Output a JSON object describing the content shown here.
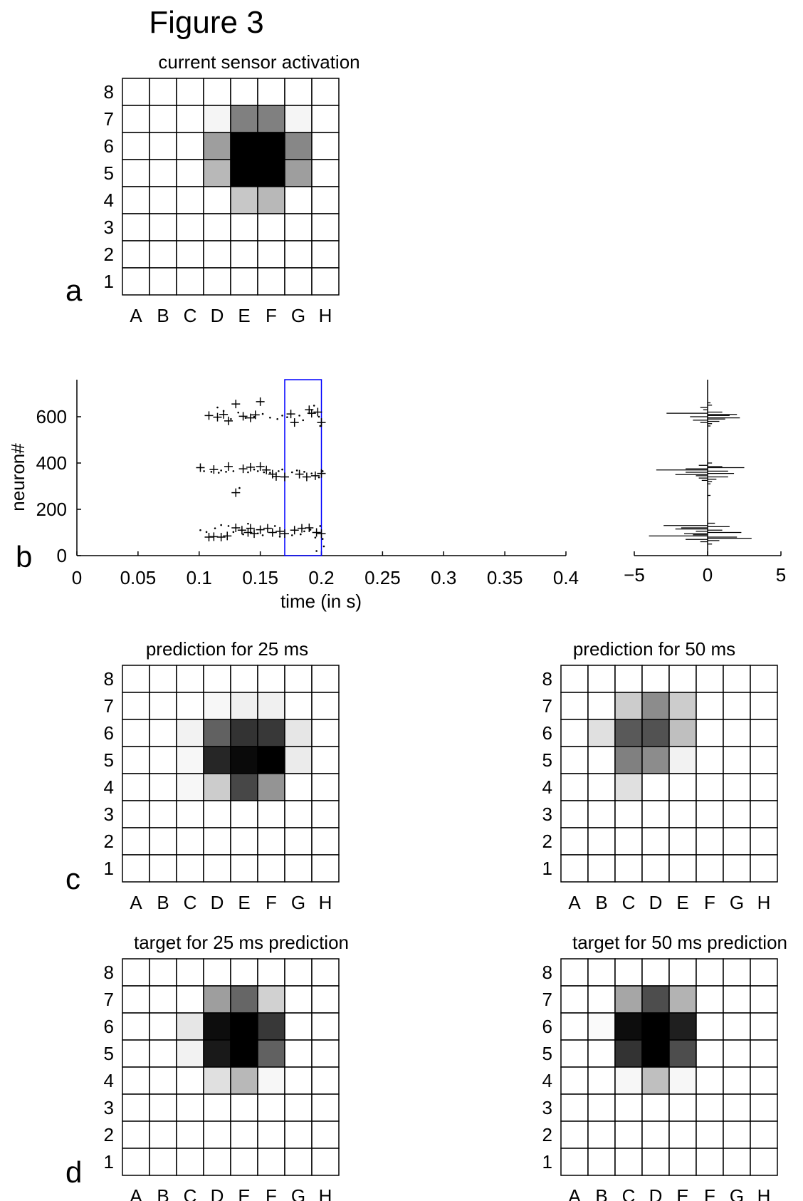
{
  "figure": {
    "title": "Figure 3"
  },
  "panel_labels": {
    "a": "a",
    "b": "b",
    "c": "c",
    "d": "d"
  },
  "grid_axes": {
    "columns": [
      "A",
      "B",
      "C",
      "D",
      "E",
      "F",
      "G",
      "H"
    ],
    "rows": [
      "8",
      "7",
      "6",
      "5",
      "4",
      "3",
      "2",
      "1"
    ]
  },
  "chart_data": [
    {
      "id": "sensor",
      "type": "heatmap",
      "title": "current sensor activation",
      "color_scale": "white-to-black (0 = white, 1 = black)",
      "rows": [
        "8",
        "7",
        "6",
        "5",
        "4",
        "3",
        "2",
        "1"
      ],
      "columns": [
        "A",
        "B",
        "C",
        "D",
        "E",
        "F",
        "G",
        "H"
      ],
      "values": [
        [
          0,
          0,
          0,
          0,
          0,
          0,
          0,
          0
        ],
        [
          0,
          0,
          0,
          0.04,
          0.5,
          0.5,
          0.04,
          0
        ],
        [
          0,
          0,
          0,
          0.38,
          1,
          1,
          0.47,
          0
        ],
        [
          0,
          0,
          0,
          0.28,
          1,
          1,
          0.38,
          0
        ],
        [
          0,
          0,
          0,
          0,
          0.22,
          0.28,
          0,
          0
        ],
        [
          0,
          0,
          0,
          0,
          0,
          0,
          0,
          0
        ],
        [
          0,
          0,
          0,
          0,
          0,
          0,
          0,
          0
        ],
        [
          0,
          0,
          0,
          0,
          0,
          0,
          0,
          0
        ]
      ]
    },
    {
      "id": "raster",
      "type": "scatter",
      "title": "",
      "xlabel": "time (in s)",
      "ylabel": "neuron#",
      "xlim": [
        0,
        0.4
      ],
      "ylim": [
        0,
        760
      ],
      "xticks": [
        "0",
        "0.05",
        "0.1",
        "0.15",
        "0.2",
        "0.25",
        "0.3",
        "0.35",
        "0.4"
      ],
      "yticks": [
        "0",
        "200",
        "400",
        "600"
      ],
      "highlight_window": {
        "x": [
          0.17,
          0.2
        ],
        "color": "#0000ff"
      },
      "series": [
        {
          "marker": "+",
          "points": [
            [
              0.108,
              605
            ],
            [
              0.115,
              598
            ],
            [
              0.12,
              610
            ],
            [
              0.124,
              582
            ],
            [
              0.13,
              655
            ],
            [
              0.136,
              602
            ],
            [
              0.142,
              595
            ],
            [
              0.146,
              608
            ],
            [
              0.15,
              665
            ],
            [
              0.175,
              612
            ],
            [
              0.178,
              575
            ],
            [
              0.19,
              630
            ],
            [
              0.192,
              615
            ],
            [
              0.197,
              620
            ],
            [
              0.2,
              575
            ],
            [
              0.101,
              380
            ],
            [
              0.112,
              372
            ],
            [
              0.124,
              385
            ],
            [
              0.13,
              272
            ],
            [
              0.136,
              375
            ],
            [
              0.142,
              382
            ],
            [
              0.15,
              385
            ],
            [
              0.155,
              370
            ],
            [
              0.16,
              352
            ],
            [
              0.163,
              342
            ],
            [
              0.17,
              340
            ],
            [
              0.182,
              352
            ],
            [
              0.188,
              340
            ],
            [
              0.195,
              345
            ],
            [
              0.2,
              355
            ],
            [
              0.108,
              80
            ],
            [
              0.112,
              82
            ],
            [
              0.118,
              80
            ],
            [
              0.123,
              85
            ],
            [
              0.13,
              120
            ],
            [
              0.135,
              110
            ],
            [
              0.14,
              100
            ],
            [
              0.142,
              118
            ],
            [
              0.145,
              95
            ],
            [
              0.15,
              112
            ],
            [
              0.156,
              118
            ],
            [
              0.16,
              100
            ],
            [
              0.166,
              105
            ],
            [
              0.17,
              95
            ],
            [
              0.178,
              110
            ],
            [
              0.184,
              118
            ],
            [
              0.19,
              120
            ],
            [
              0.196,
              100
            ],
            [
              0.2,
              95
            ]
          ]
        },
        {
          "marker": ".",
          "points": [
            [
              0.115,
              640
            ],
            [
              0.12,
              625
            ],
            [
              0.126,
              590
            ],
            [
              0.132,
              618
            ],
            [
              0.138,
              595
            ],
            [
              0.145,
              600
            ],
            [
              0.152,
              612
            ],
            [
              0.158,
              596
            ],
            [
              0.164,
              590
            ],
            [
              0.168,
              605
            ],
            [
              0.172,
              598
            ],
            [
              0.182,
              605
            ],
            [
              0.185,
              585
            ],
            [
              0.194,
              648
            ],
            [
              0.198,
              600
            ],
            [
              0.199,
              560
            ],
            [
              0.104,
              365
            ],
            [
              0.11,
              362
            ],
            [
              0.116,
              358
            ],
            [
              0.118,
              368
            ],
            [
              0.122,
              362
            ],
            [
              0.128,
              365
            ],
            [
              0.133,
              292
            ],
            [
              0.14,
              360
            ],
            [
              0.145,
              372
            ],
            [
              0.148,
              365
            ],
            [
              0.153,
              360
            ],
            [
              0.158,
              358
            ],
            [
              0.165,
              365
            ],
            [
              0.168,
              372
            ],
            [
              0.176,
              360
            ],
            [
              0.18,
              368
            ],
            [
              0.186,
              362
            ],
            [
              0.192,
              355
            ],
            [
              0.198,
              338
            ],
            [
              0.201,
              365
            ],
            [
              0.101,
              110
            ],
            [
              0.106,
              102
            ],
            [
              0.113,
              118
            ],
            [
              0.118,
              132
            ],
            [
              0.124,
              128
            ],
            [
              0.128,
              102
            ],
            [
              0.136,
              92
            ],
            [
              0.14,
              138
            ],
            [
              0.148,
              96
            ],
            [
              0.152,
              88
            ],
            [
              0.162,
              128
            ],
            [
              0.166,
              82
            ],
            [
              0.176,
              88
            ],
            [
              0.183,
              92
            ],
            [
              0.186,
              105
            ],
            [
              0.191,
              112
            ],
            [
              0.195,
              78
            ],
            [
              0.199,
              128
            ],
            [
              0.201,
              72
            ],
            [
              0.202,
              40
            ],
            [
              0.196,
              20
            ]
          ]
        }
      ]
    },
    {
      "id": "histogram",
      "type": "bar",
      "orientation": "horizontal",
      "title": "",
      "xlim": [
        -5,
        5
      ],
      "ylim": [
        0,
        760
      ],
      "xticks": [
        "−5",
        "0",
        "5"
      ],
      "bins": [
        [
          660,
          0.2
        ],
        [
          650,
          0.3
        ],
        [
          640,
          -0.5
        ],
        [
          630,
          -0.3
        ],
        [
          620,
          1.0
        ],
        [
          615,
          -2.8
        ],
        [
          610,
          2.0
        ],
        [
          605,
          1.5
        ],
        [
          600,
          -1.2
        ],
        [
          595,
          2.2
        ],
        [
          590,
          1.2
        ],
        [
          585,
          -1.0
        ],
        [
          580,
          0.8
        ],
        [
          575,
          -0.5
        ],
        [
          570,
          0.3
        ],
        [
          560,
          0.2
        ],
        [
          400,
          0.3
        ],
        [
          390,
          -0.6
        ],
        [
          385,
          1.0
        ],
        [
          380,
          2.5
        ],
        [
          375,
          -1.5
        ],
        [
          370,
          -3.5
        ],
        [
          365,
          1.4
        ],
        [
          360,
          -1.5
        ],
        [
          355,
          1.8
        ],
        [
          350,
          -2.2
        ],
        [
          345,
          -0.8
        ],
        [
          340,
          1.4
        ],
        [
          335,
          -0.6
        ],
        [
          330,
          0.6
        ],
        [
          325,
          -0.4
        ],
        [
          320,
          0.3
        ],
        [
          310,
          0.2
        ],
        [
          260,
          0.2
        ],
        [
          140,
          0.5
        ],
        [
          130,
          -3.0
        ],
        [
          125,
          1.5
        ],
        [
          120,
          -1.8
        ],
        [
          115,
          -2.2
        ],
        [
          110,
          1.0
        ],
        [
          105,
          -0.8
        ],
        [
          100,
          2.3
        ],
        [
          95,
          -1.6
        ],
        [
          90,
          -1.0
        ],
        [
          85,
          -4.0
        ],
        [
          80,
          2.0
        ],
        [
          75,
          3.0
        ],
        [
          70,
          -1.5
        ],
        [
          65,
          0.8
        ],
        [
          60,
          -0.5
        ],
        [
          50,
          0.3
        ]
      ]
    },
    {
      "id": "pred25",
      "type": "heatmap",
      "title": "prediction for 25 ms",
      "rows": [
        "8",
        "7",
        "6",
        "5",
        "4",
        "3",
        "2",
        "1"
      ],
      "columns": [
        "A",
        "B",
        "C",
        "D",
        "E",
        "F",
        "G",
        "H"
      ],
      "values": [
        [
          0,
          0,
          0,
          0,
          0,
          0,
          0,
          0
        ],
        [
          0,
          0,
          0,
          0.03,
          0.06,
          0.06,
          0,
          0
        ],
        [
          0,
          0,
          0.05,
          0.62,
          0.8,
          0.78,
          0.1,
          0
        ],
        [
          0,
          0,
          0.03,
          0.85,
          0.96,
          1,
          0.08,
          0
        ],
        [
          0,
          0,
          0.03,
          0.2,
          0.72,
          0.42,
          0,
          0
        ],
        [
          0,
          0,
          0,
          0,
          0,
          0,
          0,
          0
        ],
        [
          0,
          0,
          0,
          0,
          0,
          0,
          0,
          0
        ],
        [
          0,
          0,
          0,
          0,
          0,
          0,
          0,
          0
        ]
      ]
    },
    {
      "id": "pred50",
      "type": "heatmap",
      "title": "prediction for 50 ms",
      "rows": [
        "8",
        "7",
        "6",
        "5",
        "4",
        "3",
        "2",
        "1"
      ],
      "columns": [
        "A",
        "B",
        "C",
        "D",
        "E",
        "F",
        "G",
        "H"
      ],
      "values": [
        [
          0,
          0,
          0,
          0,
          0,
          0,
          0,
          0
        ],
        [
          0,
          0,
          0.2,
          0.45,
          0.2,
          0,
          0,
          0
        ],
        [
          0,
          0.12,
          0.65,
          0.68,
          0.25,
          0,
          0,
          0
        ],
        [
          0,
          0,
          0.5,
          0.45,
          0.05,
          0,
          0,
          0
        ],
        [
          0,
          0,
          0.12,
          0,
          0,
          0,
          0,
          0
        ],
        [
          0,
          0,
          0,
          0,
          0,
          0,
          0,
          0
        ],
        [
          0,
          0,
          0,
          0,
          0,
          0,
          0,
          0
        ],
        [
          0,
          0,
          0,
          0,
          0,
          0,
          0,
          0
        ]
      ]
    },
    {
      "id": "target25",
      "type": "heatmap",
      "title": "target for 25 ms prediction",
      "rows": [
        "8",
        "7",
        "6",
        "5",
        "4",
        "3",
        "2",
        "1"
      ],
      "columns": [
        "A",
        "B",
        "C",
        "D",
        "E",
        "F",
        "G",
        "H"
      ],
      "values": [
        [
          0,
          0,
          0,
          0,
          0,
          0,
          0,
          0
        ],
        [
          0,
          0,
          0,
          0.38,
          0.6,
          0.18,
          0,
          0
        ],
        [
          0,
          0,
          0.1,
          0.95,
          1,
          0.78,
          0,
          0
        ],
        [
          0,
          0,
          0.05,
          0.9,
          1,
          0.62,
          0,
          0
        ],
        [
          0,
          0,
          0,
          0.12,
          0.28,
          0.03,
          0,
          0
        ],
        [
          0,
          0,
          0,
          0,
          0,
          0,
          0,
          0
        ],
        [
          0,
          0,
          0,
          0,
          0,
          0,
          0,
          0
        ],
        [
          0,
          0,
          0,
          0,
          0,
          0,
          0,
          0
        ]
      ]
    },
    {
      "id": "target50",
      "type": "heatmap",
      "title": "target for 50 ms prediction",
      "rows": [
        "8",
        "7",
        "6",
        "5",
        "4",
        "3",
        "2",
        "1"
      ],
      "columns": [
        "A",
        "B",
        "C",
        "D",
        "E",
        "F",
        "G",
        "H"
      ],
      "values": [
        [
          0,
          0,
          0,
          0,
          0,
          0,
          0,
          0
        ],
        [
          0,
          0,
          0.35,
          0.7,
          0.3,
          0,
          0,
          0
        ],
        [
          0,
          0.02,
          0.95,
          1,
          0.88,
          0,
          0,
          0
        ],
        [
          0,
          0,
          0.8,
          1,
          0.7,
          0,
          0,
          0
        ],
        [
          0,
          0,
          0.03,
          0.25,
          0.03,
          0,
          0,
          0
        ],
        [
          0,
          0,
          0,
          0,
          0,
          0,
          0,
          0
        ],
        [
          0,
          0,
          0,
          0,
          0,
          0,
          0,
          0
        ],
        [
          0,
          0,
          0,
          0,
          0,
          0,
          0,
          0
        ]
      ]
    }
  ]
}
